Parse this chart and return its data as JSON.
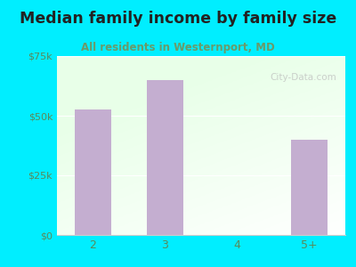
{
  "title": "Median family income by family size",
  "subtitle": "All residents in Westernport, MD",
  "categories": [
    "2",
    "3",
    "4",
    "5+"
  ],
  "values": [
    52500,
    65000,
    0,
    40000
  ],
  "bar_color": "#c4aed0",
  "background_outer": "#00eeff",
  "title_color": "#222222",
  "subtitle_color": "#6a9a6a",
  "tick_label_color": "#5a8a5a",
  "ylim": [
    0,
    75000
  ],
  "yticks": [
    0,
    25000,
    50000,
    75000
  ],
  "ytick_labels": [
    "$0",
    "$25k",
    "$50k",
    "$75k"
  ],
  "watermark": "City-Data.com",
  "watermark_color": "#bbbbbb",
  "plot_bg_left": "#d8f0d8",
  "plot_bg_right": "#f0f8ff"
}
